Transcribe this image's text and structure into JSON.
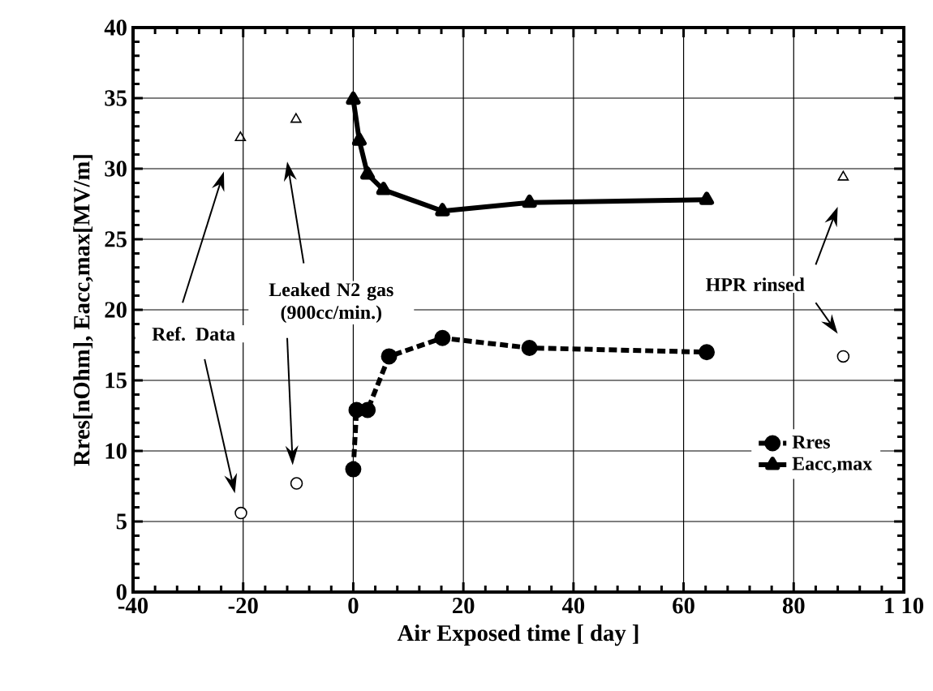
{
  "chart_data": {
    "type": "line",
    "xlabel": "Air Exposed time [ day ]",
    "ylabel": "Rres[nOhm],   Eacc,max[MV/m]",
    "xlim": [
      -40,
      100
    ],
    "ylim": [
      0,
      40
    ],
    "xticks": [
      -40,
      -20,
      0,
      20,
      40,
      60,
      80,
      {
        "value": 100,
        "label": "1 10"
      }
    ],
    "yticks": [
      0,
      5,
      10,
      15,
      20,
      25,
      30,
      35,
      40
    ],
    "grid": true,
    "legend": "bottom right",
    "annotations": [
      "Ref. Data",
      "Leaked N2 gas (900cc/min.)",
      "HPR rinsed"
    ],
    "series": [
      {
        "name": "Rres",
        "color": "#000000",
        "marker": "circle",
        "line_style": "dashed",
        "x": [
          0,
          0.6,
          2.6,
          6.5,
          16.2,
          32,
          64.2
        ],
        "values": [
          8.7,
          12.9,
          12.9,
          16.7,
          18.0,
          17.3,
          17.0
        ]
      },
      {
        "name": "Eacc,max",
        "color": "#000000",
        "marker": "triangle",
        "line_style": "solid",
        "x": [
          0,
          1.1,
          2.6,
          5.5,
          16.2,
          32,
          64.2
        ],
        "values": [
          34.9,
          32.0,
          29.6,
          28.5,
          27.0,
          27.6,
          27.8
        ]
      },
      {
        "type": "scatter",
        "color": "#000000",
        "marker": "triangle",
        "x": [
          -20.5,
          -10.4,
          89
        ],
        "values": [
          32.2,
          33.5,
          29.4
        ]
      },
      {
        "type": "scatter",
        "color": "#000000",
        "marker": "circle",
        "x": [
          -20.4,
          -10.3,
          89
        ],
        "values": [
          5.6,
          7.7,
          16.7
        ]
      }
    ]
  }
}
